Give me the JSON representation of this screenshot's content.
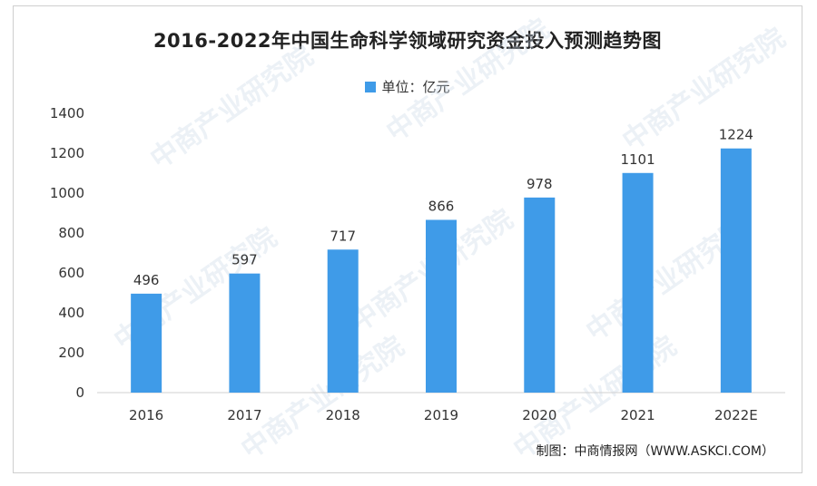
{
  "chart_data": {
    "type": "bar",
    "title": "2016-2022年中国生命科学领域研究资金投入预测趋势图",
    "legend": [
      {
        "name": "单位：亿元",
        "color": "#3f9be8"
      }
    ],
    "legend_position": "top-center",
    "categories": [
      "2016",
      "2017",
      "2018",
      "2019",
      "2020",
      "2021",
      "2022E"
    ],
    "series": [
      {
        "name": "单位：亿元",
        "values": [
          496,
          597,
          717,
          866,
          978,
          1101,
          1224
        ],
        "color": "#3f9be8"
      }
    ],
    "data_labels": [
      "496",
      "597",
      "717",
      "866",
      "978",
      "1101",
      "1224"
    ],
    "ylim": [
      0,
      1400
    ],
    "yticks": [
      0,
      200,
      400,
      600,
      800,
      1000,
      1200,
      1400
    ],
    "grid": false
  },
  "source": "制图：中商情报网（WWW.ASKCI.COM）",
  "watermark": "中商产业研究院"
}
